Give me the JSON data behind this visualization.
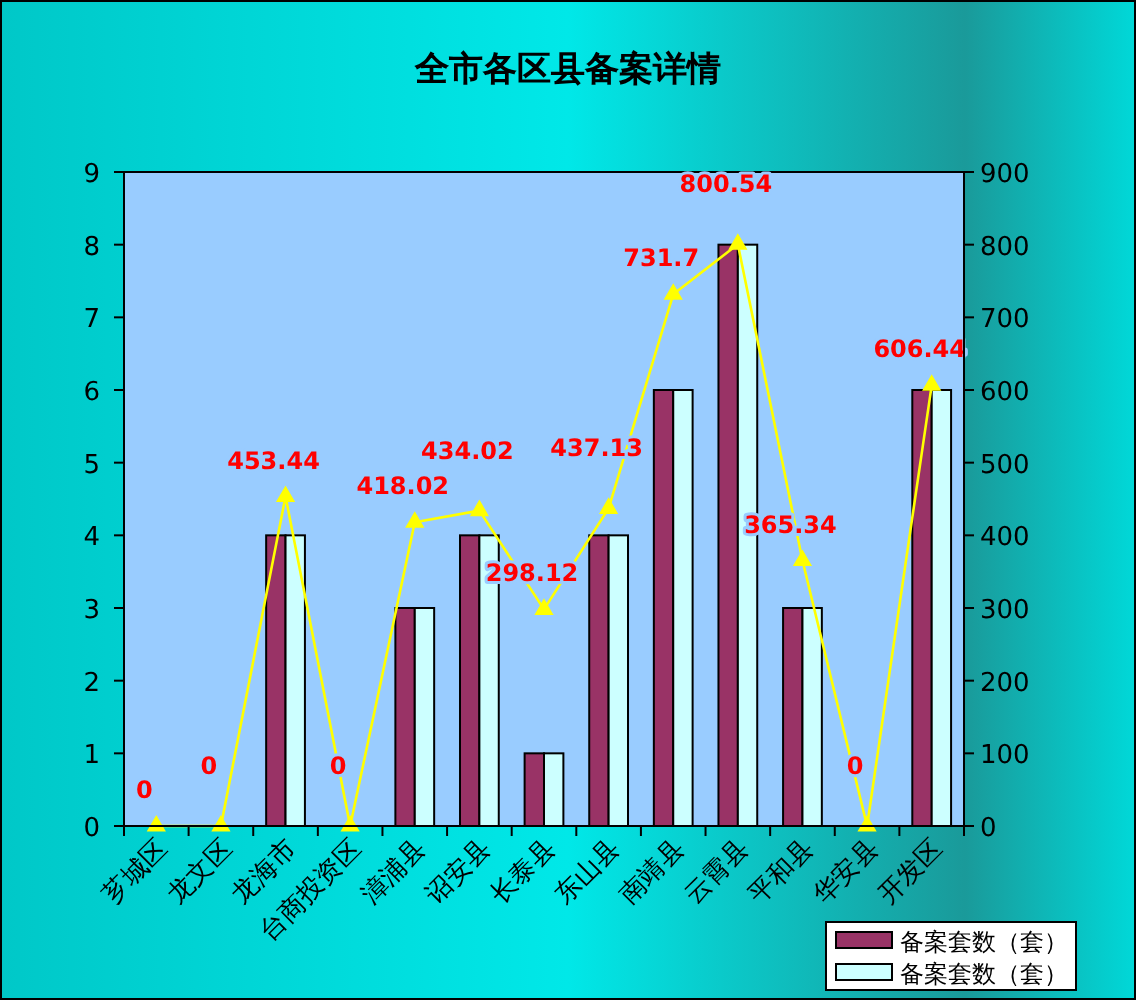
{
  "chart_data": {
    "type": "bar",
    "title": "全市各区县备案详情",
    "categories": [
      "芗城区",
      "龙文区",
      "龙海市",
      "台商投资区",
      "漳浦县",
      "诏安县",
      "长泰县",
      "东山县",
      "南靖县",
      "云霄县",
      "平和县",
      "华安县",
      "开发区"
    ],
    "series": [
      {
        "name": "备案套数（套）",
        "color": "#993366",
        "values": [
          0,
          0,
          4,
          0,
          3,
          4,
          1,
          4,
          6,
          8,
          3,
          0,
          6
        ]
      },
      {
        "name": "备案套数（套）",
        "color": "#ccffff",
        "values": [
          0,
          0,
          4,
          0,
          3,
          4,
          1,
          4,
          6,
          8,
          3,
          0,
          6
        ]
      },
      {
        "type": "line",
        "axis": "y2",
        "color": "#ffff00",
        "values": [
          0,
          0,
          453.44,
          0,
          418.02,
          434.02,
          298.12,
          437.13,
          731.7,
          800.54,
          365.34,
          0,
          606.44
        ],
        "value_labels": [
          "0",
          "0",
          "453.44",
          "0",
          "418.02",
          "434.02",
          "298.12",
          "437.13",
          "731.7",
          "800.54",
          "365.34",
          "0",
          "606.44"
        ]
      }
    ],
    "ylim": [
      0,
      9
    ],
    "yticks": [
      0,
      1,
      2,
      3,
      4,
      5,
      6,
      7,
      8,
      9
    ],
    "y2lim": [
      0,
      900
    ],
    "y2ticks": [
      0,
      100,
      200,
      300,
      400,
      500,
      600,
      700,
      800,
      900
    ],
    "legend": "bottom right",
    "marker": "triangle",
    "grid": false
  }
}
